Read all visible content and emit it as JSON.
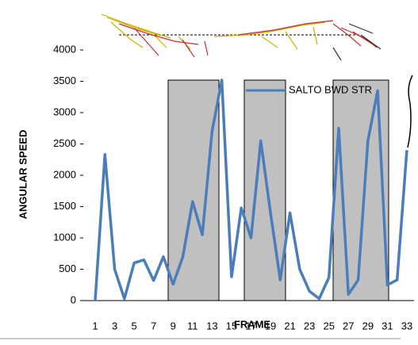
{
  "chart_data": {
    "type": "line",
    "y_label": "ANGULAR SPEED",
    "x_label": "FRAME",
    "categories": [
      "1",
      null,
      "3",
      null,
      "5",
      null,
      "7",
      null,
      "9",
      null,
      "11",
      null,
      "13",
      null,
      "15",
      null,
      "17",
      null,
      "19",
      null,
      "21",
      null,
      "23",
      null,
      "25",
      null,
      "27",
      null,
      "29",
      null,
      "31",
      null,
      "33"
    ],
    "series": [
      {
        "name": "SALTO BWD STR",
        "color": "#4a7ebb",
        "values": [
          0,
          2330,
          500,
          30,
          600,
          650,
          320,
          700,
          260,
          700,
          1580,
          1050,
          2700,
          3520,
          380,
          1480,
          1000,
          2550,
          1400,
          330,
          1400,
          500,
          150,
          30,
          370,
          2750,
          100,
          330,
          2550,
          3350,
          250,
          330,
          2400
        ]
      }
    ],
    "ylim": [
      0,
      4000
    ],
    "yticks": [
      0,
      500,
      1000,
      1500,
      2000,
      2500,
      3000,
      3500,
      4000
    ],
    "grid": false,
    "legend": "top-right"
  }
}
